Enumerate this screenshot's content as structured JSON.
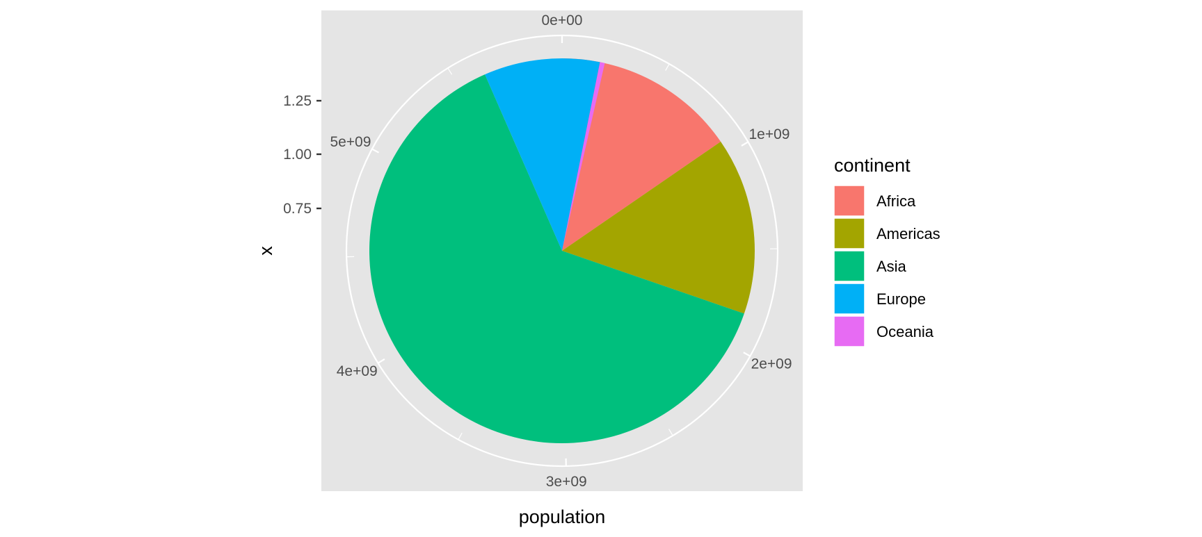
{
  "chart_data": {
    "type": "pie",
    "coord": "polar",
    "title": "",
    "xlabel": "population",
    "ylabel": "x",
    "y_ticks": [
      "0.75",
      "1.00",
      "1.25"
    ],
    "theta_ticks": [
      {
        "value": 0,
        "label": "0e+00"
      },
      {
        "value": 1000000000,
        "label": "1e+09"
      },
      {
        "value": 2000000000,
        "label": "2e+09"
      },
      {
        "value": 3000000000,
        "label": "3e+09"
      },
      {
        "value": 4000000000,
        "label": "4e+09"
      },
      {
        "value": 5000000000,
        "label": "5e+09"
      }
    ],
    "theta_max": 6036000000,
    "legend": {
      "title": "continent",
      "position": "right"
    },
    "grid": true,
    "panel_background": "#e5e5e5",
    "categories": [
      "Africa",
      "Americas",
      "Asia",
      "Europe",
      "Oceania"
    ],
    "values": [
      929500000,
      898900000,
      3811900000,
      586100000,
      24500000
    ],
    "colors": [
      "#F8766D",
      "#A3A500",
      "#00BF7D",
      "#00B0F6",
      "#E76BF3"
    ]
  }
}
